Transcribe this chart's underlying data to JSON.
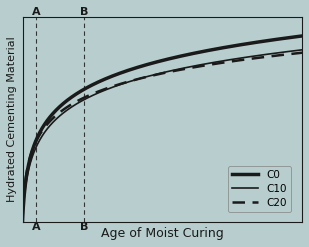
{
  "background_color": "#b8cece",
  "xlabel": "Age of Moist Curing",
  "ylabel": "Hydrated Cementing Material",
  "xlabel_fontsize": 9,
  "ylabel_fontsize": 8,
  "title": "",
  "xlim": [
    0,
    10
  ],
  "ylim": [
    0,
    1
  ],
  "vline_A_x": 0.5,
  "vline_B_x": 2.2,
  "label_A_top": "A",
  "label_A_bottom": "A",
  "label_B_top": "B",
  "label_B_bottom": "B",
  "legend_labels": [
    "C0",
    "C10",
    "C20"
  ],
  "line_color": "#1a1a1a",
  "C0_thick": 2.5,
  "C10_thick": 1.2,
  "C20_thick": 1.8
}
